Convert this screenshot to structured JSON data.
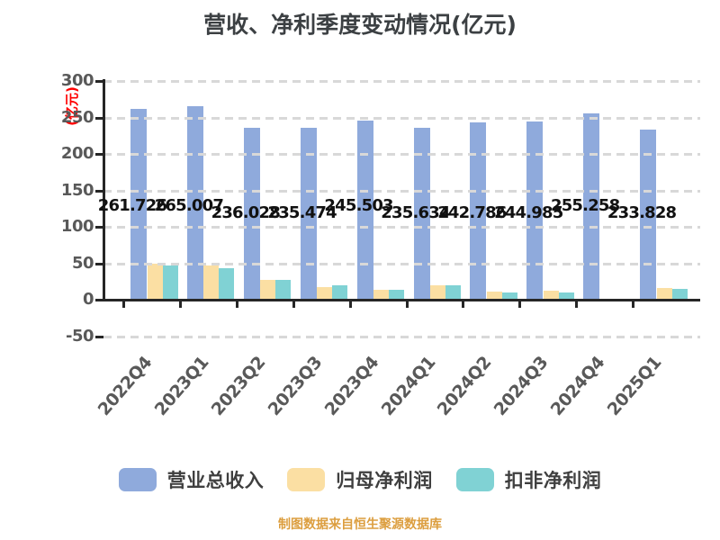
{
  "title": {
    "text": "营收、净利季度变动情况(亿元)"
  },
  "y_axis": {
    "unit_label": "(亿元)"
  },
  "chart_data": {
    "type": "bar",
    "title": "营收、净利季度变动情况(亿元)",
    "xlabel": "",
    "ylabel": "(亿元)",
    "ylim": [
      -50,
      300
    ],
    "yticks": [
      300,
      250,
      200,
      150,
      100,
      50,
      0,
      -50
    ],
    "grid": {
      "style": "dashed",
      "color": "#D8D8D8",
      "drawn_over_bars": true
    },
    "legend_position": "bottom",
    "categories": [
      "2022Q4",
      "2023Q1",
      "2023Q2",
      "2023Q3",
      "2023Q4",
      "2024Q1",
      "2024Q2",
      "2024Q3",
      "2024Q4",
      "2025Q1"
    ],
    "series": [
      {
        "key": "total-revenue",
        "name": "营业总收入",
        "color": "#8FAADC",
        "values": [
          261.726,
          265.007,
          236.028,
          235.474,
          245.503,
          235.634,
          242.786,
          244.985,
          255.258,
          233.828
        ],
        "value_labels": [
          "261.726",
          "265.007",
          "236.028",
          "235.474",
          "245.503",
          "235.634",
          "242.786",
          "244.985",
          "255.258",
          "233.828"
        ],
        "label_row": [
          "high",
          "high",
          "low",
          "low",
          "high",
          "low",
          "low",
          "low",
          "high",
          "low"
        ]
      },
      {
        "key": "net-profit",
        "name": "归母净利润",
        "color": "#FBDFA3",
        "values": [
          49.4,
          47.7,
          28.0,
          17.7,
          13.6,
          19.8,
          11.2,
          13.2,
          1.4,
          16.5
        ]
      },
      {
        "key": "non-gaap-net-profit",
        "name": "扣非净利润",
        "color": "#80D2D4",
        "values": [
          46.9,
          43.2,
          27.6,
          20.2,
          14.4,
          20.2,
          10.0,
          10.4,
          1.8,
          15.3
        ]
      }
    ]
  },
  "footer": {
    "source": "制图数据来自恒生聚源数据库"
  },
  "colors": {
    "background": "#FFFFFF",
    "title": "#3C4043",
    "axis": "#262626",
    "tick_label": "#595959",
    "data_label": "#111111",
    "unit_label": "#FF0000",
    "legend_text": "#3F3F3F",
    "footer_text": "#DC9E3F",
    "gridline": "#D8D8D8"
  }
}
